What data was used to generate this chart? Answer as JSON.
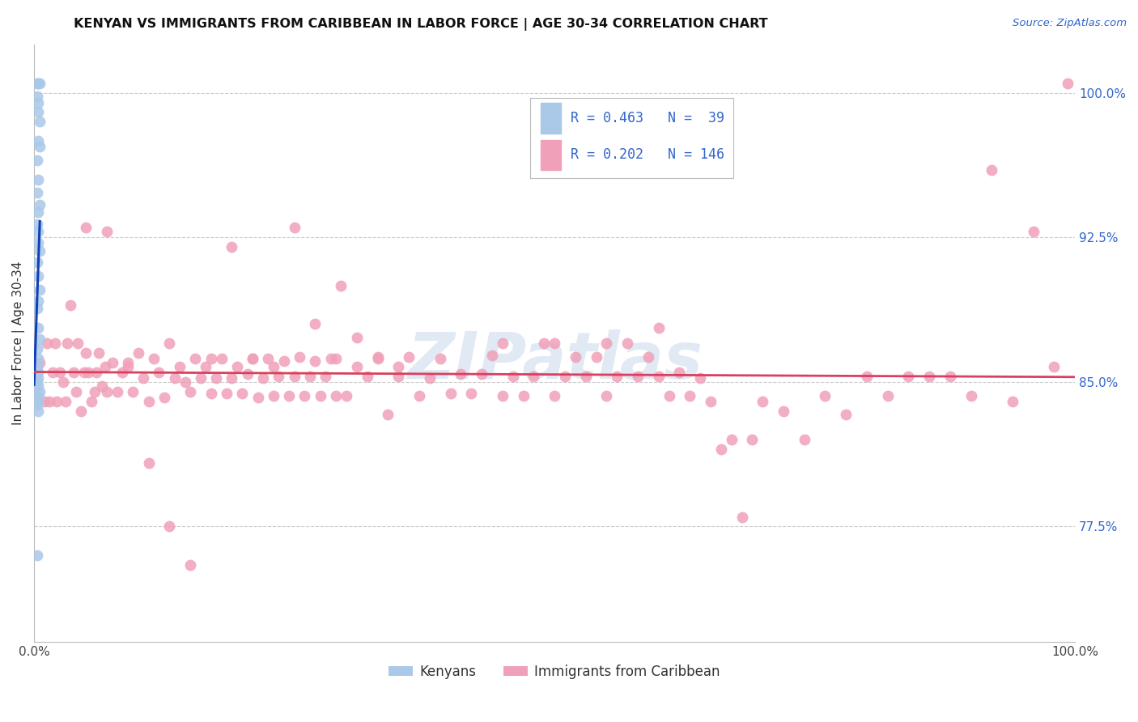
{
  "title": "KENYAN VS IMMIGRANTS FROM CARIBBEAN IN LABOR FORCE | AGE 30-34 CORRELATION CHART",
  "source_text": "Source: ZipAtlas.com",
  "ylabel": "In Labor Force | Age 30-34",
  "xlim": [
    0.0,
    1.0
  ],
  "ylim": [
    0.715,
    1.025
  ],
  "y_ticks_right": [
    1.0,
    0.925,
    0.85,
    0.775
  ],
  "y_tick_labels_right": [
    "100.0%",
    "92.5%",
    "85.0%",
    "77.5%"
  ],
  "kenyan_R": 0.463,
  "kenyan_N": 39,
  "caribbean_R": 0.202,
  "caribbean_N": 146,
  "legend_label_1": "Kenyans",
  "legend_label_2": "Immigrants from Caribbean",
  "kenyan_color": "#aac8e8",
  "kenyan_line_color": "#1040b8",
  "caribbean_color": "#f0a0b8",
  "caribbean_line_color": "#d84060",
  "watermark": "ZIPatlas",
  "background_color": "#ffffff",
  "grid_color": "#cccccc",
  "kenyan_x": [
    0.003,
    0.004,
    0.005,
    0.003,
    0.004,
    0.004,
    0.005,
    0.004,
    0.005,
    0.003,
    0.004,
    0.003,
    0.005,
    0.004,
    0.003,
    0.004,
    0.004,
    0.005,
    0.003,
    0.004,
    0.005,
    0.004,
    0.003,
    0.004,
    0.005,
    0.003,
    0.004,
    0.003,
    0.004,
    0.004,
    0.003,
    0.004,
    0.005,
    0.003,
    0.004,
    0.004,
    0.003,
    0.004,
    0.003
  ],
  "kenyan_y": [
    1.005,
    1.005,
    1.005,
    0.998,
    0.995,
    0.99,
    0.985,
    0.975,
    0.972,
    0.965,
    0.955,
    0.948,
    0.942,
    0.938,
    0.932,
    0.928,
    0.922,
    0.918,
    0.912,
    0.905,
    0.898,
    0.892,
    0.888,
    0.878,
    0.872,
    0.867,
    0.862,
    0.858,
    0.855,
    0.852,
    0.85,
    0.848,
    0.845,
    0.843,
    0.842,
    0.84,
    0.838,
    0.835,
    0.76
  ],
  "caribbean_x": [
    0.005,
    0.01,
    0.012,
    0.015,
    0.018,
    0.02,
    0.022,
    0.025,
    0.028,
    0.03,
    0.032,
    0.035,
    0.038,
    0.04,
    0.042,
    0.045,
    0.048,
    0.05,
    0.052,
    0.055,
    0.058,
    0.06,
    0.062,
    0.065,
    0.068,
    0.07,
    0.075,
    0.08,
    0.085,
    0.09,
    0.095,
    0.1,
    0.105,
    0.11,
    0.115,
    0.12,
    0.125,
    0.13,
    0.135,
    0.14,
    0.145,
    0.15,
    0.155,
    0.16,
    0.165,
    0.17,
    0.175,
    0.18,
    0.185,
    0.19,
    0.195,
    0.2,
    0.205,
    0.21,
    0.215,
    0.22,
    0.225,
    0.23,
    0.235,
    0.24,
    0.245,
    0.25,
    0.255,
    0.26,
    0.265,
    0.27,
    0.275,
    0.28,
    0.285,
    0.29,
    0.295,
    0.3,
    0.31,
    0.32,
    0.33,
    0.34,
    0.35,
    0.36,
    0.37,
    0.38,
    0.39,
    0.4,
    0.41,
    0.42,
    0.43,
    0.44,
    0.45,
    0.46,
    0.47,
    0.48,
    0.49,
    0.5,
    0.51,
    0.52,
    0.53,
    0.54,
    0.55,
    0.56,
    0.57,
    0.58,
    0.59,
    0.6,
    0.61,
    0.62,
    0.63,
    0.64,
    0.65,
    0.66,
    0.67,
    0.68,
    0.69,
    0.7,
    0.72,
    0.74,
    0.76,
    0.78,
    0.8,
    0.82,
    0.84,
    0.86,
    0.88,
    0.9,
    0.92,
    0.94,
    0.96,
    0.98,
    0.05,
    0.07,
    0.09,
    0.11,
    0.13,
    0.15,
    0.17,
    0.19,
    0.21,
    0.23,
    0.25,
    0.27,
    0.29,
    0.31,
    0.33,
    0.35,
    0.45,
    0.5,
    0.55,
    0.6
  ],
  "caribbean_y": [
    0.86,
    0.84,
    0.87,
    0.84,
    0.855,
    0.87,
    0.84,
    0.855,
    0.85,
    0.84,
    0.87,
    0.89,
    0.855,
    0.845,
    0.87,
    0.835,
    0.855,
    0.865,
    0.855,
    0.84,
    0.845,
    0.855,
    0.865,
    0.848,
    0.858,
    0.845,
    0.86,
    0.845,
    0.855,
    0.86,
    0.845,
    0.865,
    0.852,
    0.84,
    0.862,
    0.855,
    0.842,
    0.87,
    0.852,
    0.858,
    0.85,
    0.845,
    0.862,
    0.852,
    0.858,
    0.844,
    0.852,
    0.862,
    0.844,
    0.852,
    0.858,
    0.844,
    0.854,
    0.862,
    0.842,
    0.852,
    0.862,
    0.843,
    0.853,
    0.861,
    0.843,
    0.853,
    0.863,
    0.843,
    0.853,
    0.861,
    0.843,
    0.853,
    0.862,
    0.843,
    0.9,
    0.843,
    0.873,
    0.853,
    0.863,
    0.833,
    0.853,
    0.863,
    0.843,
    0.852,
    0.862,
    0.844,
    0.854,
    0.844,
    0.854,
    0.864,
    0.843,
    0.853,
    0.843,
    0.853,
    0.87,
    0.843,
    0.853,
    0.863,
    0.853,
    0.863,
    0.843,
    0.853,
    0.87,
    0.853,
    0.863,
    0.853,
    0.843,
    0.855,
    0.843,
    0.852,
    0.84,
    0.815,
    0.82,
    0.78,
    0.82,
    0.84,
    0.835,
    0.82,
    0.843,
    0.833,
    0.853,
    0.843,
    0.853,
    0.853,
    0.853,
    0.843,
    0.96,
    0.84,
    0.928,
    0.858,
    0.93,
    0.928,
    0.858,
    0.808,
    0.775,
    0.755,
    0.862,
    0.92,
    0.862,
    0.858,
    0.93,
    0.88,
    0.862,
    0.858,
    0.862,
    0.858,
    0.87,
    0.87,
    0.87,
    0.878
  ]
}
